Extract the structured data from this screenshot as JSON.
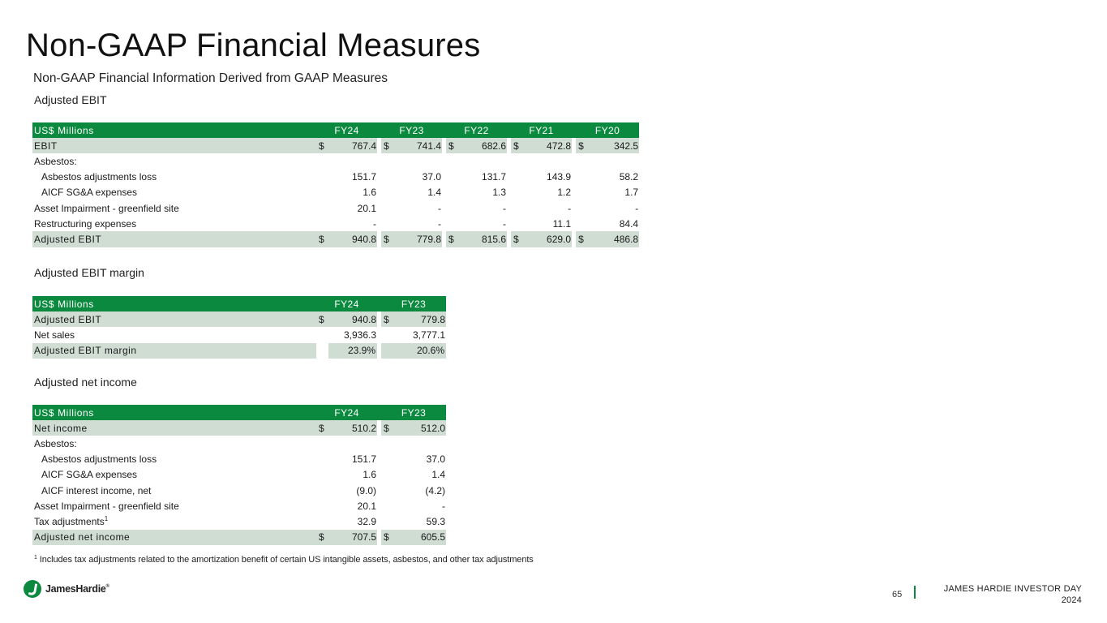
{
  "page": {
    "title": "Non-GAAP Financial Measures",
    "subtitle": "Non-GAAP Financial Information Derived from GAAP Measures"
  },
  "adjusted_ebit": {
    "section_title": "Adjusted EBIT",
    "header": {
      "label": "US$ Millions",
      "cols": [
        "FY24",
        "FY23",
        "FY22",
        "FY21",
        "FY20"
      ]
    },
    "rows": [
      {
        "label": "EBIT",
        "cur": "$",
        "values": [
          "767.4",
          "741.4",
          "682.6",
          "472.8",
          "342.5"
        ]
      },
      {
        "label": "Asbestos:",
        "values": [
          "",
          "",
          "",
          "",
          ""
        ]
      },
      {
        "label": "Asbestos adjustments loss",
        "values": [
          "151.7",
          "37.0",
          "131.7",
          "143.9",
          "58.2"
        ]
      },
      {
        "label": "AICF SG&A expenses",
        "values": [
          "1.6",
          "1.4",
          "1.3",
          "1.2",
          "1.7"
        ]
      },
      {
        "label": "Asset Impairment - greenfield site",
        "values": [
          "20.1",
          "-",
          "-",
          "-",
          "-"
        ]
      },
      {
        "label": "Restructuring expenses",
        "values": [
          "-",
          "-",
          "-",
          "11.1",
          "84.4"
        ]
      },
      {
        "label": "Adjusted EBIT",
        "cur": "$",
        "values": [
          "940.8",
          "779.8",
          "815.6",
          "629.0",
          "486.8"
        ]
      }
    ]
  },
  "adjusted_ebit_margin": {
    "section_title": "Adjusted EBIT margin",
    "header": {
      "label": "US$ Millions",
      "cols": [
        "FY24",
        "FY23"
      ]
    },
    "rows": [
      {
        "label": "Adjusted EBIT",
        "cur": "$",
        "values": [
          "940.8",
          "779.8"
        ]
      },
      {
        "label": "Net sales",
        "values": [
          "3,936.3",
          "3,777.1"
        ]
      },
      {
        "label": "Adjusted EBIT margin",
        "values": [
          "23.9%",
          "20.6%"
        ]
      }
    ]
  },
  "adjusted_net_income": {
    "section_title": "Adjusted net income",
    "header": {
      "label": "US$ Millions",
      "cols": [
        "FY24",
        "FY23"
      ]
    },
    "rows": [
      {
        "label": "Net income",
        "cur": "$",
        "values": [
          "510.2",
          "512.0"
        ]
      },
      {
        "label": "Asbestos:",
        "values": [
          "",
          ""
        ]
      },
      {
        "label": "Asbestos adjustments loss",
        "values": [
          "151.7",
          "37.0"
        ]
      },
      {
        "label": "AICF SG&A expenses",
        "values": [
          "1.6",
          "1.4"
        ]
      },
      {
        "label": "AICF interest income, net",
        "values": [
          "(9.0)",
          "(4.2)"
        ]
      },
      {
        "label": "Asset Impairment - greenfield site",
        "values": [
          "20.1",
          "-"
        ]
      },
      {
        "label": "Tax adjustments",
        "sup": "1",
        "values": [
          "32.9",
          "59.3"
        ]
      },
      {
        "label": "Adjusted net income",
        "cur": "$",
        "values": [
          "707.5",
          "605.5"
        ]
      }
    ]
  },
  "footnote": {
    "marker": "1",
    "text": " Includes tax adjustments related to the amortization benefit of certain US intangible assets, asbestos, and other tax adjustments"
  },
  "footer": {
    "logo_text": "JamesHardie",
    "logo_reg": "®",
    "page_number": "65",
    "event_line1": "JAMES HARDIE INVESTOR DAY",
    "event_line2": "2024"
  },
  "colors": {
    "header_green": "#0b8a3f",
    "shade": "#cfddd3"
  }
}
